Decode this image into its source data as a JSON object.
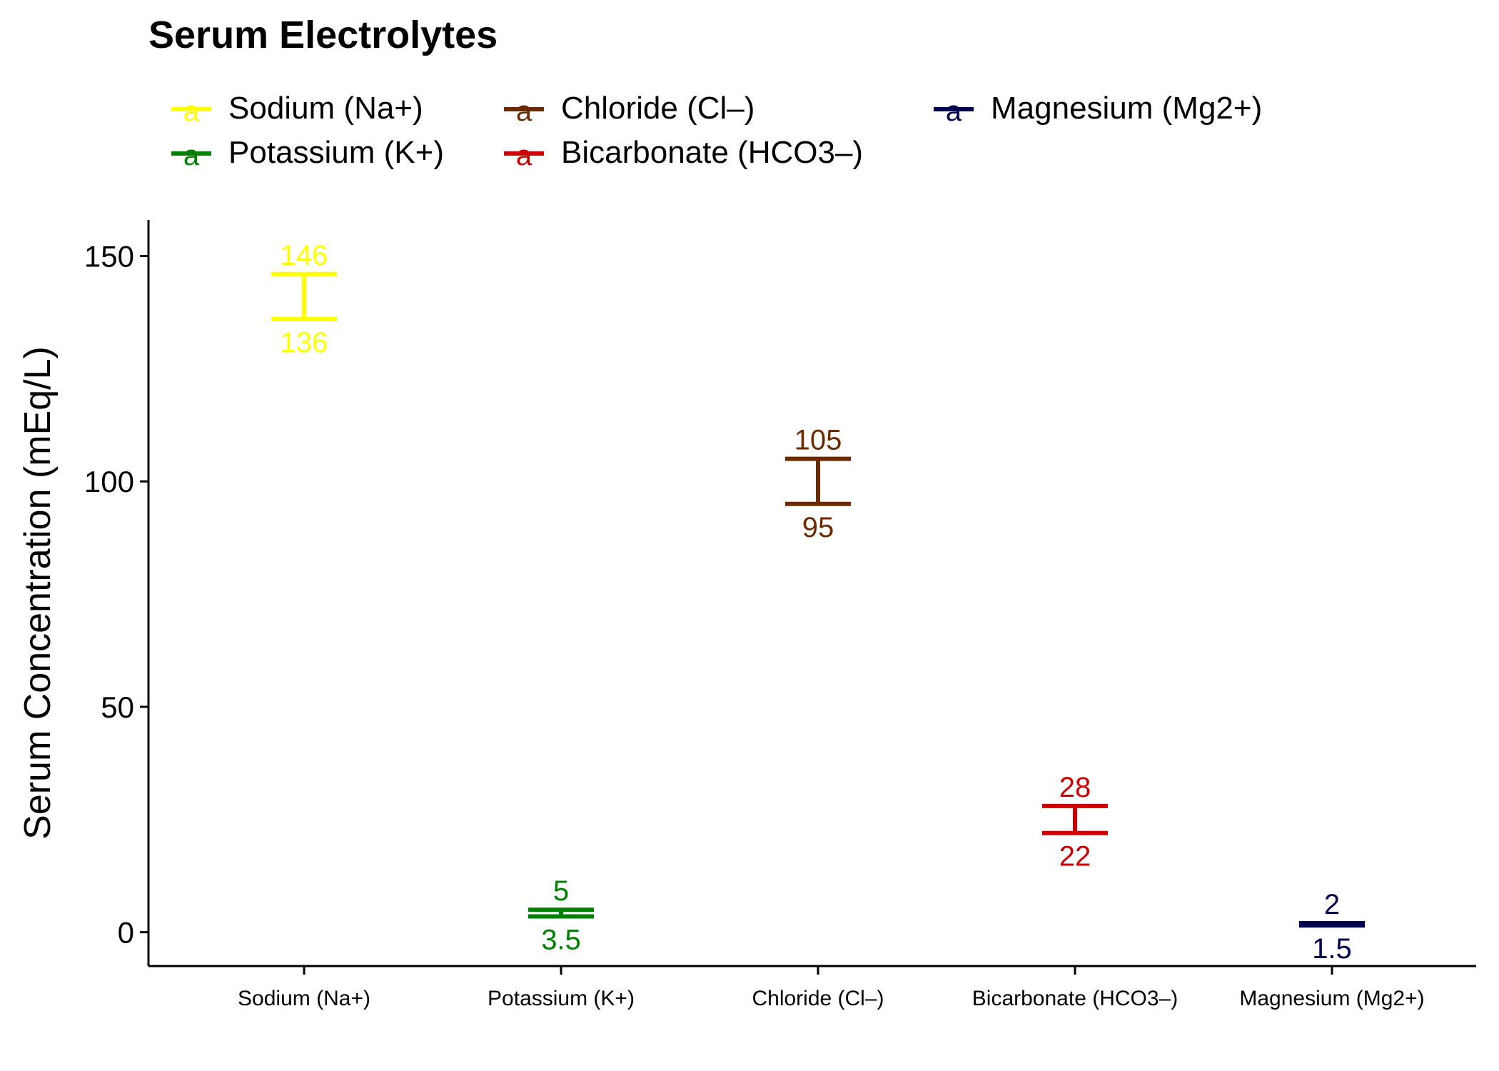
{
  "chart_data": {
    "type": "errorbar",
    "title": "Serum Electrolytes",
    "xlabel": "",
    "ylabel": "Serum Concentration (mEq/L)",
    "ylim": [
      -7.5,
      158
    ],
    "yticks": [
      0,
      50,
      100,
      150
    ],
    "grid": false,
    "legend_position": "top",
    "categories": [
      "Sodium (Na+)",
      "Potassium (K+)",
      "Chloride (Cl–)",
      "Bicarbonate (HCO3–)",
      "Magnesium (Mg2+)"
    ],
    "series": [
      {
        "name": "Sodium (Na+)",
        "category": "Sodium (Na+)",
        "low": 136,
        "high": 146,
        "low_label": "136",
        "high_label": "146",
        "color": "#FFFF00"
      },
      {
        "name": "Potassium (K+)",
        "category": "Potassium (K+)",
        "low": 3.5,
        "high": 5,
        "low_label": "3.5",
        "high_label": "5",
        "color": "#008000"
      },
      {
        "name": "Chloride (Cl–)",
        "category": "Chloride (Cl–)",
        "low": 95,
        "high": 105,
        "low_label": "95",
        "high_label": "105",
        "color": "#6B2A00"
      },
      {
        "name": "Bicarbonate (HCO3–)",
        "category": "Bicarbonate (HCO3–)",
        "low": 22,
        "high": 28,
        "low_label": "22",
        "high_label": "28",
        "color": "#CC0000"
      },
      {
        "name": "Magnesium (Mg2+)",
        "category": "Magnesium (Mg2+)",
        "low": 1.5,
        "high": 2,
        "low_label": "1.5",
        "high_label": "2",
        "color": "#000050"
      }
    ],
    "legend": {
      "glyph": "a",
      "items": [
        {
          "label": "Sodium (Na+)",
          "color": "#FFFF00"
        },
        {
          "label": "Potassium (K+)",
          "color": "#008000"
        },
        {
          "label": "Chloride (Cl–)",
          "color": "#6B2A00"
        },
        {
          "label": "Bicarbonate (HCO3–)",
          "color": "#CC0000"
        },
        {
          "label": "Magnesium (Mg2+)",
          "color": "#000050"
        }
      ]
    }
  }
}
